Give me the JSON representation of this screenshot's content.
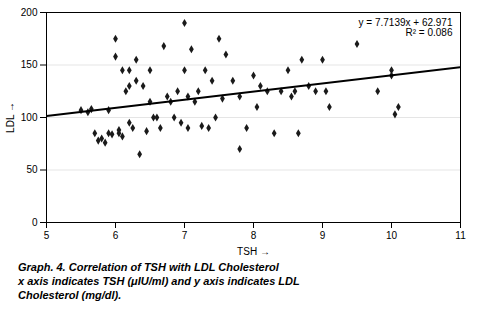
{
  "chart_data": {
    "type": "scatter",
    "xlabel": "TSH",
    "ylabel": "LDL",
    "series": [
      {
        "type": "scatter",
        "color": "#1a1a1a",
        "marker": "diamond",
        "x": [
          5.5,
          5.6,
          5.65,
          5.7,
          5.75,
          5.8,
          5.85,
          5.9,
          5.9,
          5.95,
          6.0,
          6.0,
          6.05,
          6.05,
          6.1,
          6.15,
          6.1,
          6.2,
          6.2,
          6.2,
          6.25,
          6.3,
          6.3,
          6.35,
          6.4,
          6.45,
          6.5,
          6.5,
          6.55,
          6.6,
          6.65,
          6.7,
          6.75,
          6.8,
          6.85,
          6.9,
          6.95,
          7.0,
          7.0,
          7.05,
          7.05,
          7.1,
          7.15,
          7.2,
          7.25,
          7.3,
          7.35,
          7.4,
          7.45,
          7.5,
          7.55,
          7.6,
          7.7,
          7.8,
          7.8,
          7.9,
          8.0,
          8.05,
          8.1,
          8.2,
          8.3,
          8.4,
          8.5,
          8.55,
          8.6,
          8.65,
          8.7,
          8.8,
          8.9,
          9.0,
          9.05,
          9.1,
          9.5,
          9.8,
          10.0,
          10.0,
          10.05,
          10.1
        ],
        "values": [
          107,
          105,
          108,
          85,
          78,
          80,
          76,
          107,
          85,
          84,
          175,
          158,
          88,
          85,
          145,
          125,
          82,
          145,
          130,
          95,
          90,
          155,
          135,
          65,
          130,
          87,
          145,
          115,
          100,
          100,
          90,
          168,
          120,
          115,
          100,
          125,
          95,
          190,
          145,
          120,
          90,
          165,
          115,
          125,
          92,
          145,
          90,
          135,
          100,
          175,
          118,
          160,
          135,
          120,
          70,
          90,
          140,
          110,
          130,
          125,
          85,
          125,
          145,
          120,
          125,
          85,
          155,
          130,
          125,
          155,
          125,
          110,
          170,
          125,
          145,
          140,
          103,
          110
        ]
      },
      {
        "type": "line",
        "color": "#000000",
        "line_style": "solid",
        "x": [
          5,
          11
        ],
        "values": [
          101.5405,
          147.8239
        ]
      }
    ],
    "annotations": [
      "y = 7.7139x + 62.971",
      "R² = 0.086"
    ],
    "caption": [
      "Graph. 4. Correlation of TSH with LDL Cholesterol",
      "x axis indicates TSH (μIU/ml) and y axis indicates LDL",
      "Cholesterol (mg/dl)."
    ],
    "xlim": [
      5,
      11
    ],
    "ylim": [
      0,
      200
    ],
    "xticks": [
      5,
      6,
      7,
      8,
      9,
      10,
      11
    ],
    "yticks": [
      0,
      50,
      100,
      150,
      200
    ],
    "grid": "y"
  }
}
